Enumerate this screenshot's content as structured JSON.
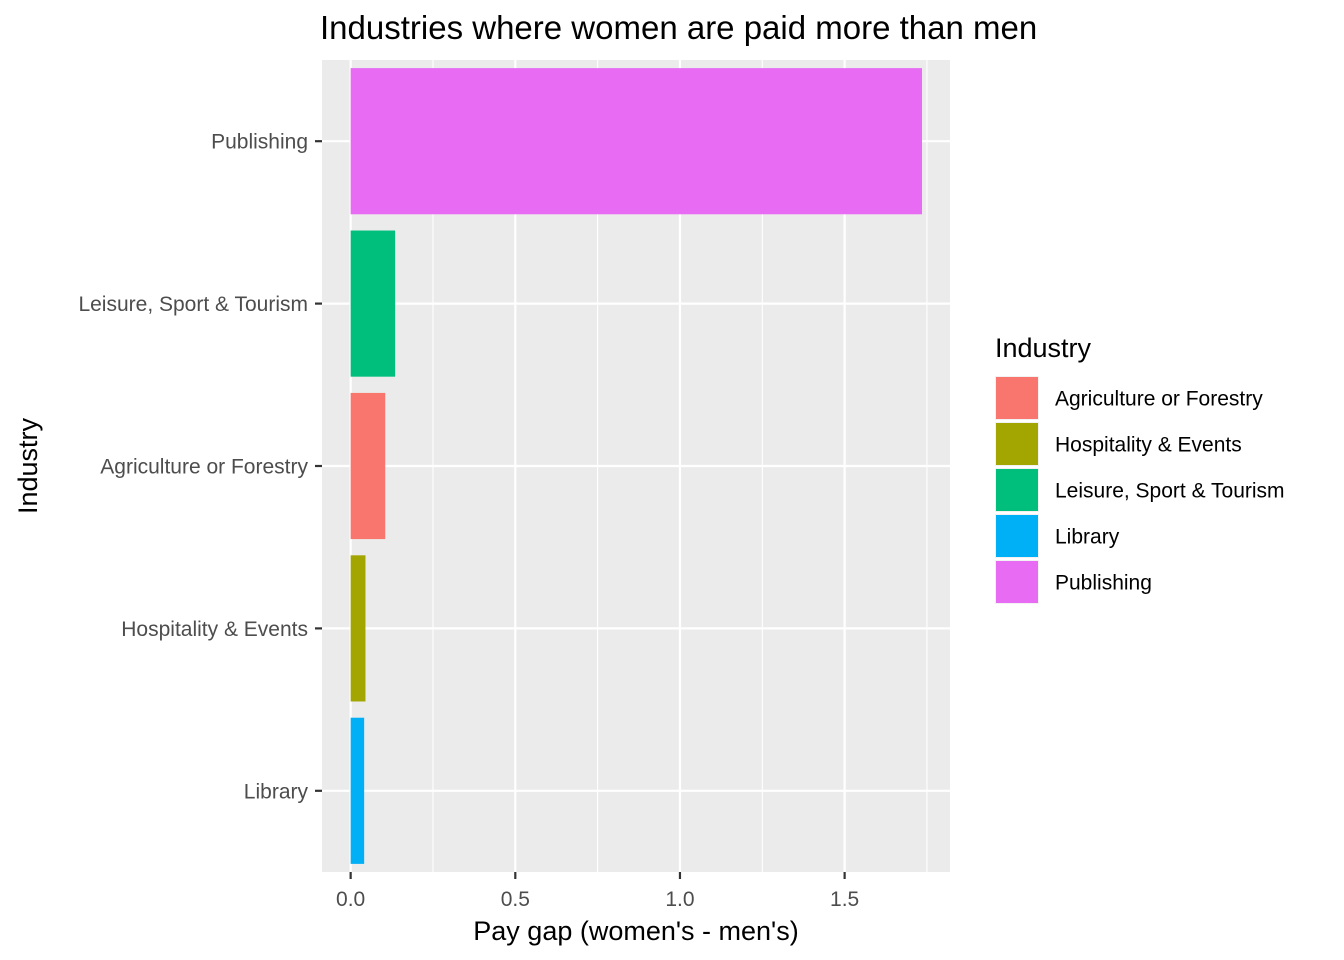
{
  "chart_data": {
    "type": "bar",
    "orientation": "horizontal",
    "title": "Industries where women are paid more than men",
    "xlabel": "Pay gap (women's - men's)",
    "ylabel": "Industry",
    "xlim": [
      -0.087,
      1.82
    ],
    "x_ticks": [
      0.0,
      0.5,
      1.0,
      1.5
    ],
    "x_tick_labels": [
      "0.0",
      "0.5",
      "1.0",
      "1.5"
    ],
    "categories": [
      "Publishing",
      "Leisure, Sport & Tourism",
      "Agriculture or Forestry",
      "Hospitality & Events",
      "Library"
    ],
    "values": [
      1.735,
      0.135,
      0.105,
      0.045,
      0.041
    ],
    "colors": {
      "Agriculture or Forestry": "#F8766D",
      "Hospitality & Events": "#A3A500",
      "Leisure, Sport & Tourism": "#00BF7D",
      "Library": "#00B0F6",
      "Publishing": "#E76BF3"
    },
    "grid": true,
    "panel_background": "#EBEBEB",
    "grid_color": "#FFFFFF",
    "legend": {
      "title": "Industry",
      "position": "right",
      "entries": [
        "Agriculture or Forestry",
        "Hospitality & Events",
        "Leisure, Sport & Tourism",
        "Library",
        "Publishing"
      ]
    }
  }
}
